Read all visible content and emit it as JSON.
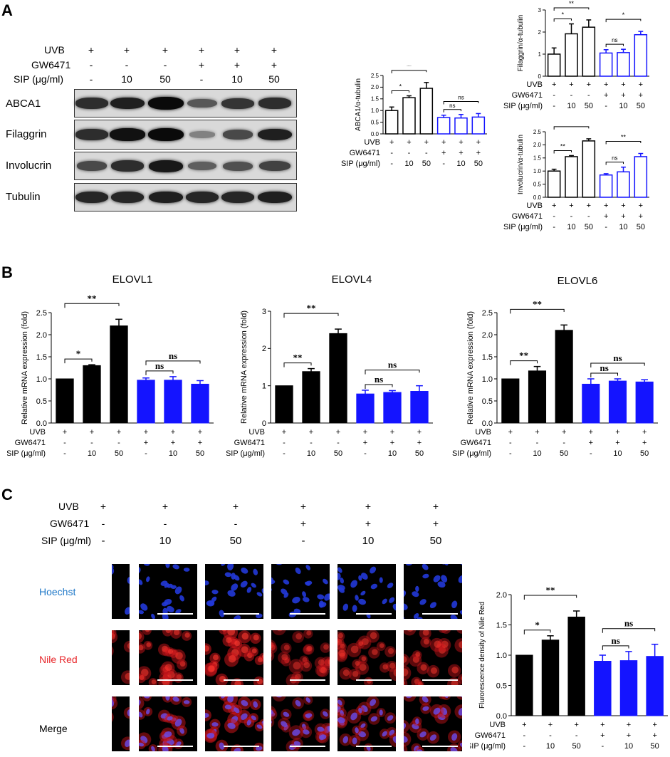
{
  "panels": {
    "a": "A",
    "b": "B",
    "c": "C"
  },
  "conditions": {
    "row_labels": [
      "UVB",
      "GW6471",
      "SIP (μg/ml)"
    ],
    "uvb": [
      "+",
      "+",
      "+",
      "+",
      "+",
      "+"
    ],
    "gw6471": [
      "-",
      "-",
      "-",
      "+",
      "+",
      "+"
    ],
    "sip": [
      "-",
      "10",
      "50",
      "-",
      "10",
      "50"
    ]
  },
  "western_blot": {
    "proteins": [
      "ABCA1",
      "Filaggrin",
      "Involucrin",
      "Tubulin"
    ],
    "band_intensity": [
      [
        0.75,
        0.85,
        1.0,
        0.45,
        0.7,
        0.75
      ],
      [
        0.75,
        0.95,
        1.0,
        0.15,
        0.55,
        0.85
      ],
      [
        0.55,
        0.75,
        0.9,
        0.4,
        0.5,
        0.6
      ],
      [
        0.8,
        0.8,
        0.85,
        0.8,
        0.8,
        0.85
      ]
    ]
  },
  "microscopy": {
    "row_labels": [
      "Hoechst",
      "Nile Red",
      "Merge"
    ],
    "row_colors": [
      "#1f78c8",
      "#e8262a",
      "#000000"
    ]
  },
  "colors": {
    "black": "#000000",
    "blue": "#1414ff"
  },
  "chart_data": [
    {
      "id": "abca1",
      "type": "bar",
      "style": "open",
      "ylabel": "ABCA1/α-tubulin",
      "ylim": [
        0,
        2.5
      ],
      "yticks": [
        "0.0",
        "0.5",
        "1.0",
        "1.5",
        "2.0",
        "2.5"
      ],
      "values": [
        1.0,
        1.55,
        1.95,
        0.7,
        0.68,
        0.72
      ],
      "errors": [
        0.15,
        0.08,
        0.25,
        0.1,
        0.15,
        0.15
      ],
      "sig": [
        {
          "a": 0,
          "b": 1,
          "label": "*"
        },
        {
          "a": 0,
          "b": 2,
          "label": "**"
        },
        {
          "a": 3,
          "b": 4,
          "label": "ns"
        },
        {
          "a": 3,
          "b": 5,
          "label": "ns"
        }
      ]
    },
    {
      "id": "filaggrin",
      "type": "bar",
      "style": "open",
      "ylabel": "Filaggrin/α-tubulin",
      "ylim": [
        0,
        3
      ],
      "yticks": [
        "0",
        "1",
        "2",
        "3"
      ],
      "values": [
        1.0,
        1.92,
        2.22,
        1.05,
        1.07,
        1.88
      ],
      "errors": [
        0.28,
        0.45,
        0.33,
        0.15,
        0.15,
        0.15
      ],
      "sig": [
        {
          "a": 0,
          "b": 1,
          "label": "*"
        },
        {
          "a": 0,
          "b": 2,
          "label": "**"
        },
        {
          "a": 3,
          "b": 4,
          "label": "ns"
        },
        {
          "a": 3,
          "b": 5,
          "label": "*"
        }
      ]
    },
    {
      "id": "involucrin",
      "type": "bar",
      "style": "open",
      "ylabel": "Involucrin/α-tubulin",
      "ylim": [
        0,
        2.5
      ],
      "yticks": [
        "0.0",
        "0.5",
        "1.0",
        "1.5",
        "2.0",
        "2.5"
      ],
      "values": [
        1.0,
        1.55,
        2.15,
        0.85,
        0.97,
        1.55
      ],
      "errors": [
        0.07,
        0.04,
        0.08,
        0.05,
        0.18,
        0.12
      ],
      "sig": [
        {
          "a": 0,
          "b": 1,
          "label": "**"
        },
        {
          "a": 0,
          "b": 2,
          "label": "**"
        },
        {
          "a": 3,
          "b": 4,
          "label": "ns"
        },
        {
          "a": 3,
          "b": 5,
          "label": "**"
        }
      ]
    },
    {
      "id": "elovl1",
      "type": "bar",
      "style": "filled",
      "title": "ELOVL1",
      "ylabel": "Relative mRNA expression (fold)",
      "ylim": [
        0,
        2.5
      ],
      "yticks": [
        "0.0",
        "0.5",
        "1.0",
        "1.5",
        "2.0",
        "2.5"
      ],
      "values": [
        1.0,
        1.3,
        2.2,
        0.97,
        0.97,
        0.88
      ],
      "errors": [
        0.0,
        0.02,
        0.15,
        0.05,
        0.08,
        0.08
      ],
      "sig": [
        {
          "a": 0,
          "b": 1,
          "label": "*"
        },
        {
          "a": 0,
          "b": 2,
          "label": "**"
        },
        {
          "a": 3,
          "b": 4,
          "label": "ns"
        },
        {
          "a": 3,
          "b": 5,
          "label": "ns"
        }
      ]
    },
    {
      "id": "elovl4",
      "type": "bar",
      "style": "filled",
      "title": "ELOVL4",
      "ylabel": "Relative mRNA expression (fold)",
      "ylim": [
        0,
        3
      ],
      "yticks": [
        "0",
        "1",
        "2",
        "3"
      ],
      "values": [
        1.0,
        1.38,
        2.4,
        0.78,
        0.82,
        0.85
      ],
      "errors": [
        0.0,
        0.08,
        0.12,
        0.1,
        0.05,
        0.15
      ],
      "sig": [
        {
          "a": 0,
          "b": 1,
          "label": "**"
        },
        {
          "a": 0,
          "b": 2,
          "label": "**"
        },
        {
          "a": 3,
          "b": 4,
          "label": "ns"
        },
        {
          "a": 3,
          "b": 5,
          "label": "ns"
        }
      ]
    },
    {
      "id": "elovl6",
      "type": "bar",
      "style": "filled",
      "title": "ELOVL6",
      "ylabel": "Relative mRNA expression (fold)",
      "ylim": [
        0,
        2.5
      ],
      "yticks": [
        "0.0",
        "0.5",
        "1.0",
        "1.5",
        "2.0",
        "2.5"
      ],
      "values": [
        1.0,
        1.18,
        2.1,
        0.88,
        0.95,
        0.93
      ],
      "errors": [
        0.0,
        0.1,
        0.12,
        0.12,
        0.05,
        0.05
      ],
      "sig": [
        {
          "a": 0,
          "b": 1,
          "label": "**"
        },
        {
          "a": 0,
          "b": 2,
          "label": "**"
        },
        {
          "a": 3,
          "b": 4,
          "label": "ns"
        },
        {
          "a": 3,
          "b": 5,
          "label": "ns"
        }
      ]
    },
    {
      "id": "nilered",
      "type": "bar",
      "style": "filled",
      "ylabel": "Flurorescence density of Nile Red",
      "ylim": [
        0,
        2.0
      ],
      "yticks": [
        "0.0",
        "0.5",
        "1.0",
        "1.5",
        "2.0"
      ],
      "values": [
        1.0,
        1.25,
        1.63,
        0.9,
        0.91,
        0.98
      ],
      "errors": [
        0.0,
        0.07,
        0.1,
        0.1,
        0.15,
        0.2
      ],
      "sig": [
        {
          "a": 0,
          "b": 1,
          "label": "*"
        },
        {
          "a": 0,
          "b": 2,
          "label": "**"
        },
        {
          "a": 3,
          "b": 4,
          "label": "ns"
        },
        {
          "a": 3,
          "b": 5,
          "label": "ns"
        }
      ]
    }
  ]
}
